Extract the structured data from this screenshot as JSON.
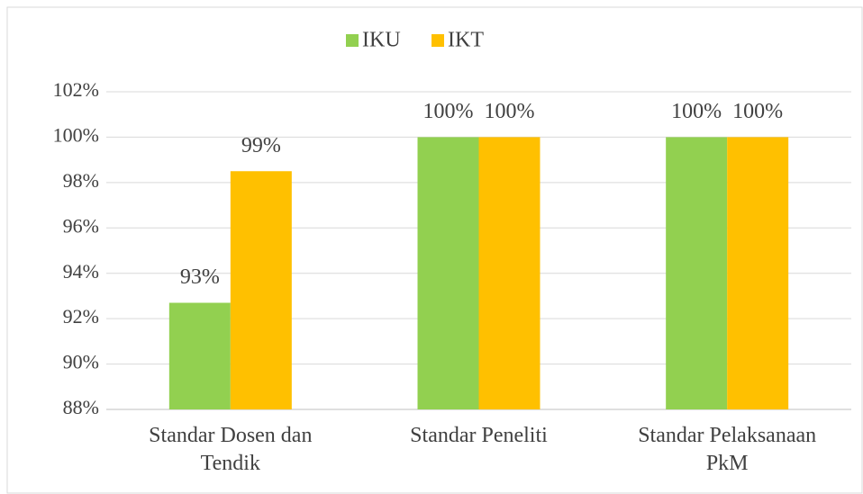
{
  "chart_data": {
    "type": "bar",
    "categories": [
      "Standar Dosen dan Tendik",
      "Standar Peneliti",
      "Standar Pelaksanaan PkM"
    ],
    "series": [
      {
        "name": "IKU",
        "color": "#92d050",
        "values": [
          92.7,
          100,
          100
        ],
        "value_labels": [
          "93%",
          "100%",
          "100%"
        ]
      },
      {
        "name": "IKT",
        "color": "#ffc000",
        "values": [
          98.5,
          100,
          100
        ],
        "value_labels": [
          "99%",
          "100%",
          "100%"
        ]
      }
    ],
    "ylim": [
      88,
      102
    ],
    "yticks": [
      {
        "value": 88,
        "label": "88%"
      },
      {
        "value": 90,
        "label": "90%"
      },
      {
        "value": 92,
        "label": "92%"
      },
      {
        "value": 94,
        "label": "94%"
      },
      {
        "value": 96,
        "label": "96%"
      },
      {
        "value": 98,
        "label": "98%"
      },
      {
        "value": 100,
        "label": "100%"
      },
      {
        "value": 102,
        "label": "102%"
      }
    ],
    "grid": true,
    "legend": "top"
  }
}
